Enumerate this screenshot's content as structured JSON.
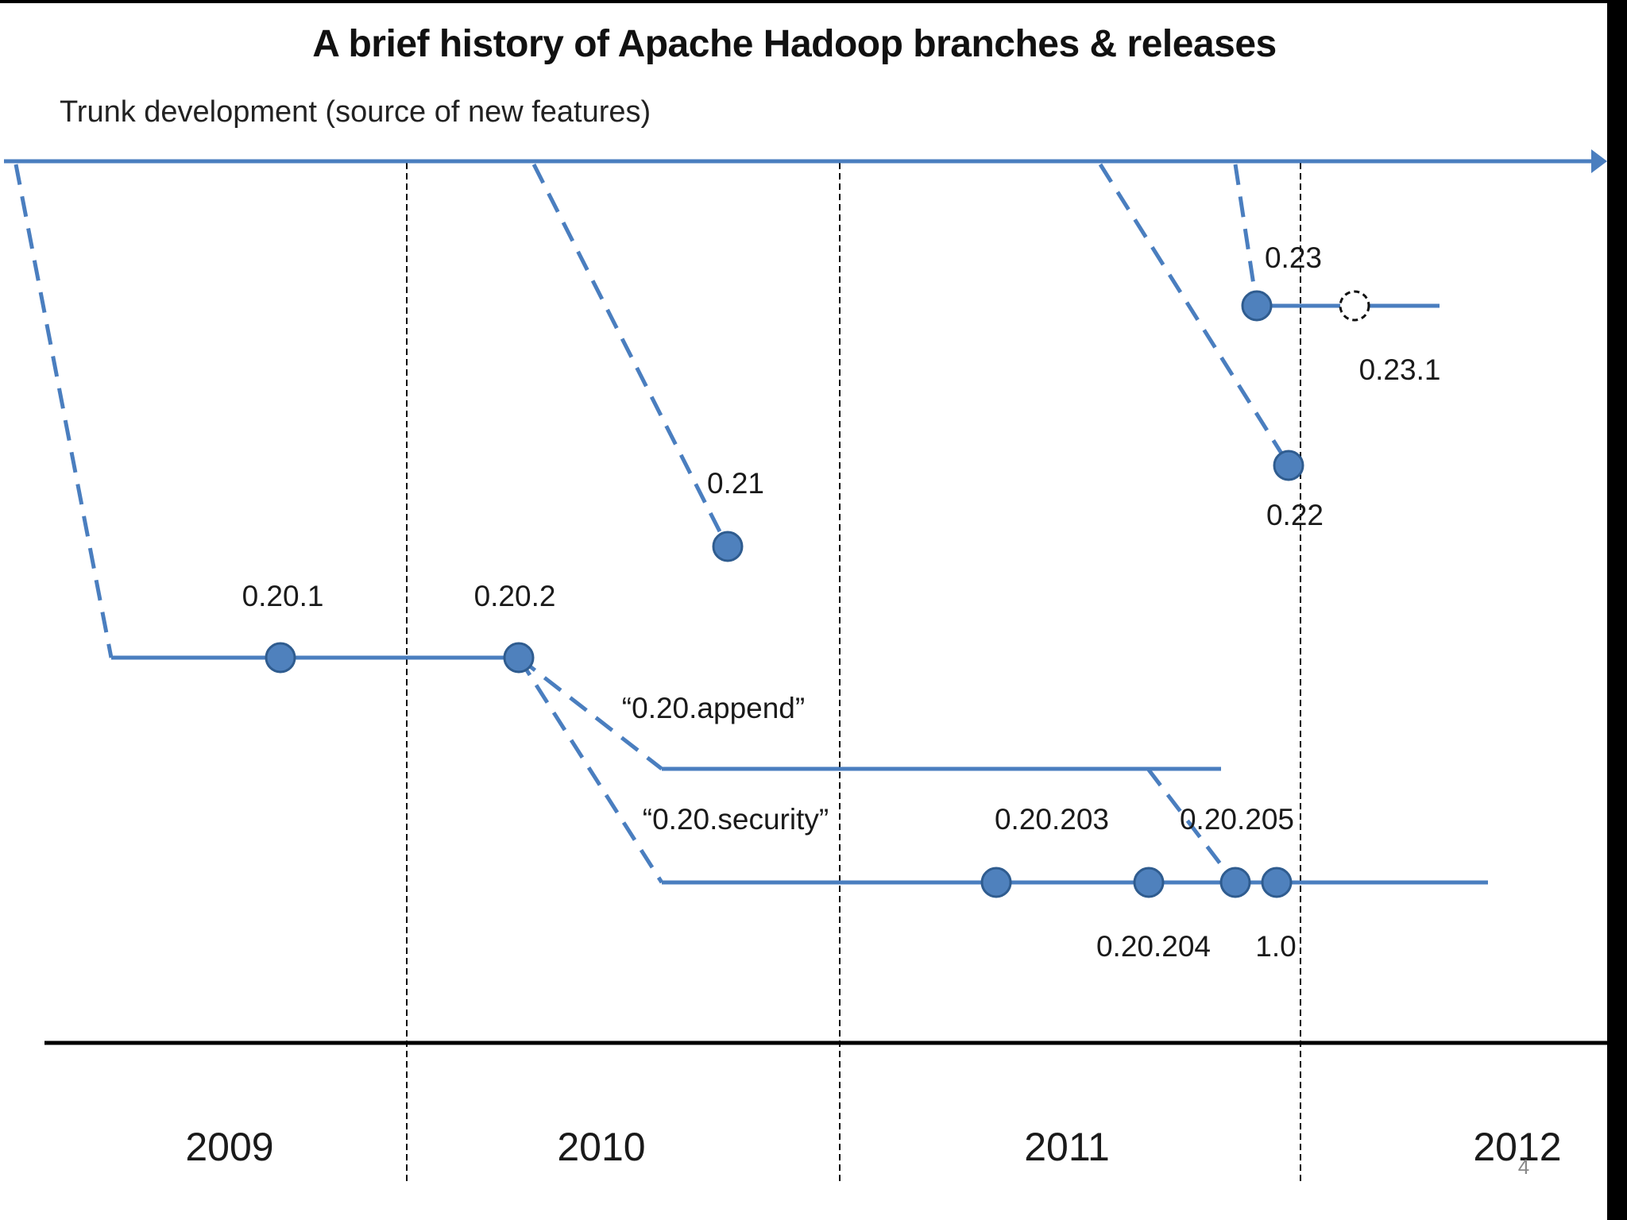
{
  "title": "A brief history of Apache Hadoop branches & releases",
  "trunk_label": "Trunk development (source of new features)",
  "branch_labels": {
    "append": "“0.20.append”",
    "security": "“0.20.security”"
  },
  "releases": {
    "r0201": "0.20.1",
    "r0202": "0.20.2",
    "r021": "0.21",
    "r022": "0.22",
    "r023": "0.23",
    "r0231": "0.23.1",
    "r020203": "0.20.203",
    "r020204": "0.20.204",
    "r020205": "0.20.205",
    "r10": "1.0"
  },
  "years": {
    "y2009": "2009",
    "y2010": "2010",
    "y2011": "2011",
    "y2012": "2012"
  },
  "page_number": "4",
  "colors": {
    "line": "#4a7ebf",
    "node_fill": "#4f81bd",
    "node_stroke": "#2f5c8f",
    "axis": "#000000",
    "divider": "#000000"
  }
}
